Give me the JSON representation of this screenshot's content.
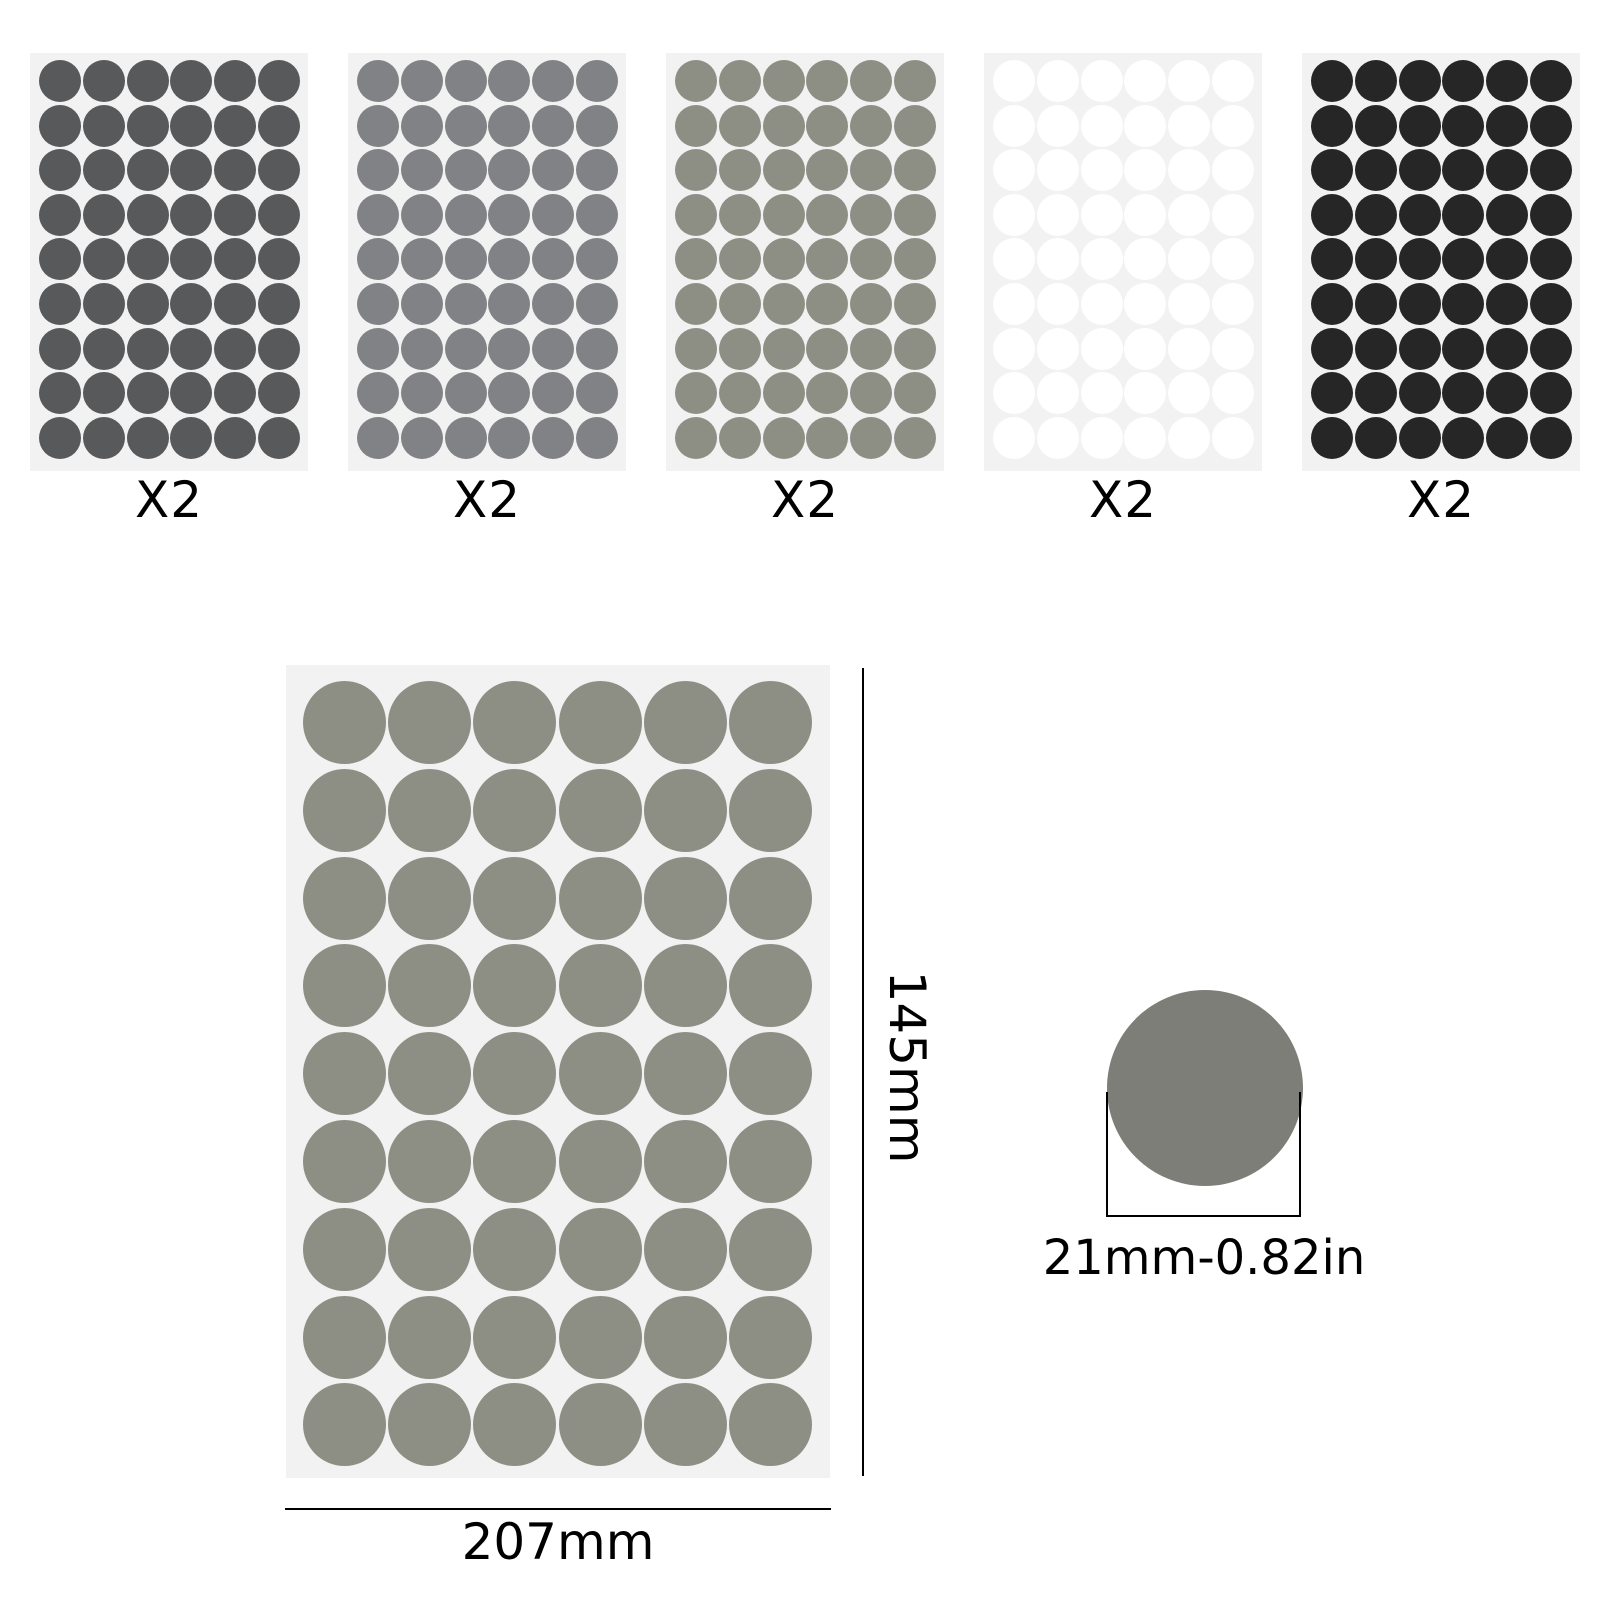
{
  "sheets": [
    {
      "color": "#58595b",
      "qty_label": "X2"
    },
    {
      "color": "#818285",
      "qty_label": "X2"
    },
    {
      "color": "#8e8f84",
      "qty_label": "X2"
    },
    {
      "color": "#ffffff",
      "qty_label": "X2"
    },
    {
      "color": "#262626",
      "qty_label": "X2"
    }
  ],
  "grid": {
    "columns": 6,
    "rows": 9
  },
  "detail": {
    "color": "#8e8f84",
    "height_label": "145mm",
    "width_label": "207mm",
    "dot_color": "#7d7e77",
    "diameter_label": "21mm-0.82in"
  }
}
